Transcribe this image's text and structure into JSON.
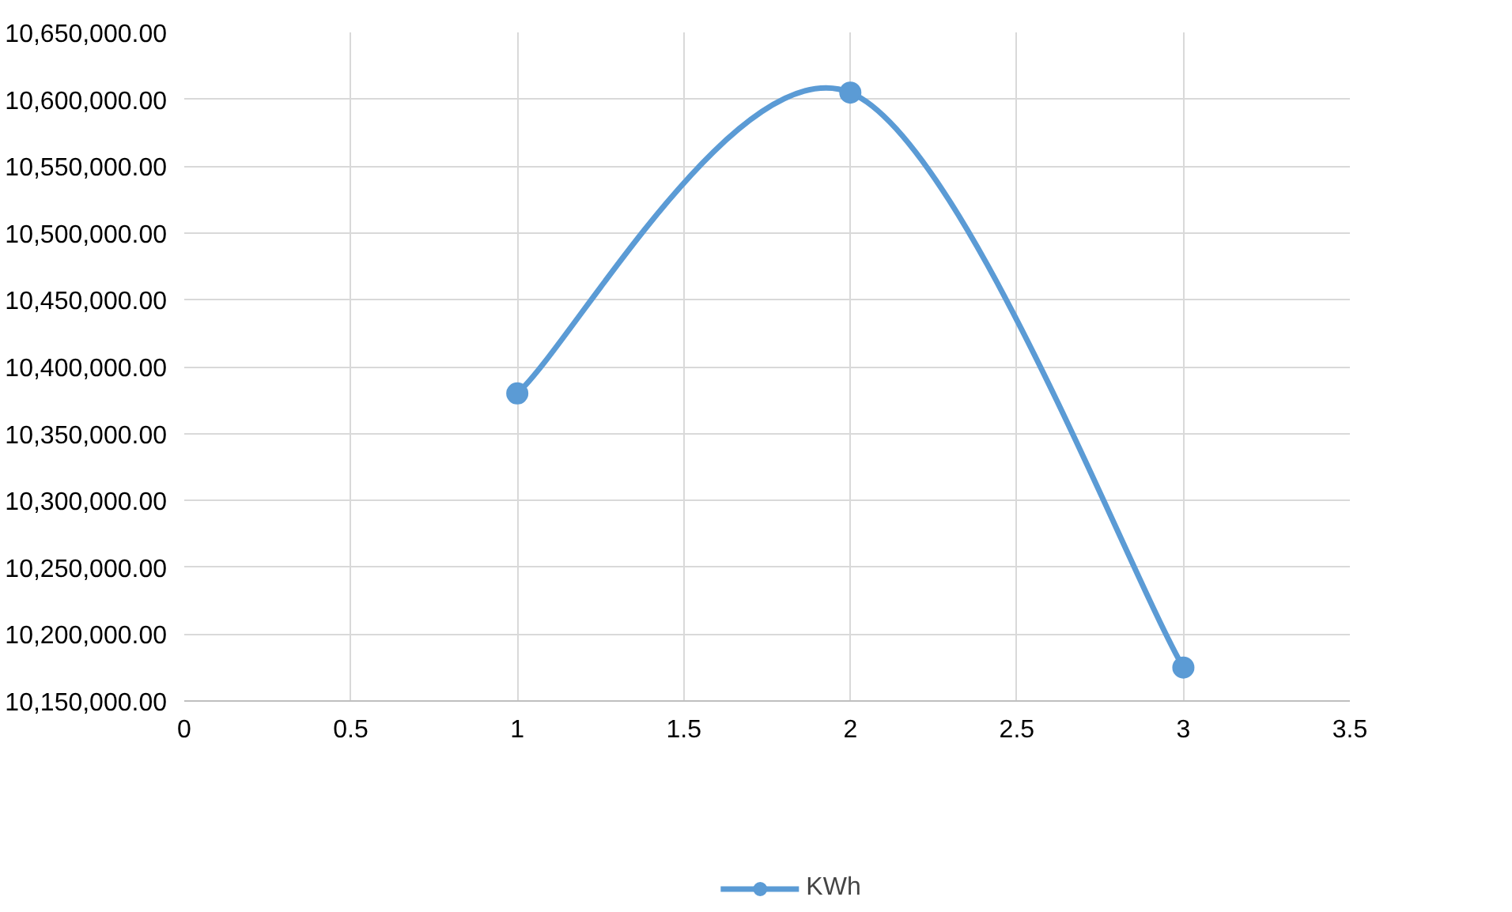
{
  "chart_data": {
    "type": "line",
    "x": [
      1,
      2,
      3
    ],
    "series": [
      {
        "name": "KWh",
        "color": "#5b9bd5",
        "values": [
          10380000,
          10605000,
          10175000
        ]
      }
    ],
    "xlim": [
      0,
      3.5
    ],
    "xticks": [
      0,
      0.5,
      1,
      1.5,
      2,
      2.5,
      3,
      3.5
    ],
    "ylim": [
      10150000,
      10650000
    ],
    "yticks": [
      {
        "value": 10150000,
        "label": "10,150,000.00"
      },
      {
        "value": 10200000,
        "label": "10,200,000.00"
      },
      {
        "value": 10250000,
        "label": "10,250,000.00"
      },
      {
        "value": 10300000,
        "label": "10,300,000.00"
      },
      {
        "value": 10350000,
        "label": "10,350,000.00"
      },
      {
        "value": 10400000,
        "label": "10,400,000.00"
      },
      {
        "value": 10450000,
        "label": "10,450,000.00"
      },
      {
        "value": 10500000,
        "label": "10,500,000.00"
      },
      {
        "value": 10550000,
        "label": "10,550,000.00"
      },
      {
        "value": 10600000,
        "label": "10,600,000.00"
      },
      {
        "value": 10650000,
        "label": "10,650,000.00"
      }
    ],
    "grid": true,
    "legend": "bottom",
    "marker": "circle",
    "line_style": "solid"
  }
}
